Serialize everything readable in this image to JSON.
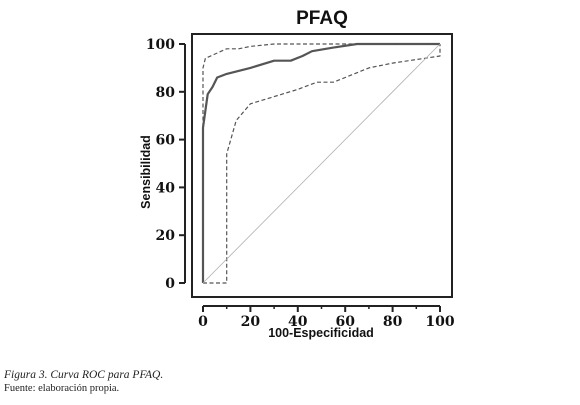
{
  "caption": {
    "figure": "Figura 3. Curva ROC para PFAQ.",
    "source": "Fuente: elaboración propia."
  },
  "chart_data": {
    "type": "line",
    "title": "PFAQ",
    "xlabel": "100-Especificidad",
    "ylabel": "Sensibilidad",
    "xlim": [
      0,
      100
    ],
    "ylim": [
      0,
      100
    ],
    "xticks": [
      0,
      20,
      40,
      60,
      80,
      100
    ],
    "yticks": [
      0,
      20,
      40,
      60,
      80,
      100
    ],
    "grid": false,
    "series": [
      {
        "style": "solid",
        "color": "#555555",
        "x": [
          0,
          0,
          2,
          4,
          6,
          10,
          20,
          30,
          37,
          42,
          46,
          55,
          65,
          100
        ],
        "y": [
          0,
          65,
          79,
          82,
          86,
          87.5,
          90,
          93,
          93,
          95,
          97,
          98.5,
          100,
          100
        ]
      },
      {
        "style": "dashed",
        "color": "#555555",
        "x": [
          0,
          0,
          1,
          10,
          15,
          20,
          30,
          40,
          45,
          50,
          55,
          60,
          65,
          70,
          80,
          100,
          100
        ],
        "y": [
          0,
          90,
          94,
          98,
          98,
          99,
          100,
          100,
          100,
          100,
          100,
          100,
          100,
          100,
          100,
          100,
          100
        ]
      },
      {
        "style": "dashed",
        "color": "#555555",
        "x": [
          0,
          10,
          10,
          14,
          20,
          30,
          40,
          48,
          55,
          60,
          70,
          80,
          100,
          100
        ],
        "y": [
          0,
          0,
          54,
          68,
          75,
          78,
          81,
          84,
          84,
          86,
          90,
          92,
          95,
          100
        ]
      },
      {
        "style": "diagonal",
        "color": "#b0b0b0",
        "x": [
          0,
          100
        ],
        "y": [
          0,
          100
        ]
      }
    ]
  }
}
